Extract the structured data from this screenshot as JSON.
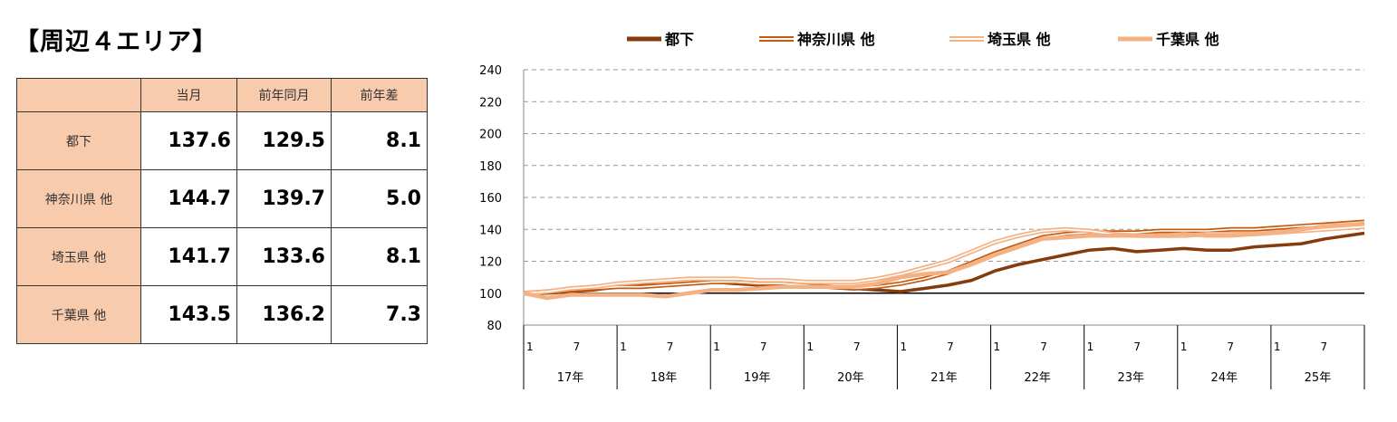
{
  "title": "【周辺４エリア】",
  "table": {
    "headers": [
      "",
      "当月",
      "前年同月",
      "前年差"
    ],
    "rows": [
      {
        "label": "都下",
        "current": "137.6",
        "prev": "129.5",
        "diff": "8.1"
      },
      {
        "label": "神奈川県 他",
        "current": "144.7",
        "prev": "139.7",
        "diff": "5.0"
      },
      {
        "label": "埼玉県 他",
        "current": "141.7",
        "prev": "133.6",
        "diff": "8.1"
      },
      {
        "label": "千葉県 他",
        "current": "143.5",
        "prev": "136.2",
        "diff": "7.3"
      }
    ]
  },
  "chart_data": {
    "type": "line",
    "ylim": [
      80,
      240
    ],
    "yticks": [
      80,
      100,
      120,
      140,
      160,
      180,
      200,
      220,
      240
    ],
    "grid": true,
    "legend": "top",
    "year_labels": [
      "17年",
      "18年",
      "19年",
      "20年",
      "21年",
      "22年",
      "23年",
      "24年",
      "25年"
    ],
    "month_tick_labels": [
      "1",
      "7"
    ],
    "months_total": 108,
    "series_sampling": "quarterly (months 1, 4, 7, 10 of each year, plus final month)",
    "series": [
      {
        "name": "都下",
        "color": "#843c0c",
        "style": "solid",
        "values": [
          100,
          100,
          101,
          102,
          104,
          105,
          105,
          106,
          107,
          106,
          105,
          104,
          104,
          104,
          103,
          102,
          101,
          103,
          105,
          108,
          114,
          118,
          121,
          124,
          127,
          128,
          126,
          127,
          128,
          127,
          127,
          129,
          130,
          131,
          134,
          137.6
        ]
      },
      {
        "name": "神奈川県 他",
        "color": "#c55a11",
        "style": "double",
        "values": [
          100,
          101,
          102,
          103,
          104,
          104,
          105,
          106,
          107,
          107,
          106,
          106,
          105,
          104,
          103,
          104,
          106,
          109,
          113,
          119,
          125,
          130,
          135,
          137,
          138,
          138,
          138,
          139,
          139,
          139,
          140,
          140,
          141,
          142,
          143,
          144.7
        ]
      },
      {
        "name": "埼玉県 他",
        "color": "#f4b183",
        "style": "double",
        "values": [
          100,
          101,
          103,
          104,
          106,
          107,
          108,
          109,
          109,
          109,
          108,
          108,
          107,
          107,
          107,
          109,
          112,
          116,
          120,
          126,
          132,
          136,
          139,
          140,
          139,
          137,
          136,
          136,
          136,
          137,
          137,
          137,
          138,
          139,
          140,
          141.7
        ]
      },
      {
        "name": "千葉県 他",
        "color": "#f4b183",
        "style": "solid-thick",
        "values": [
          100,
          97,
          99,
          99,
          99,
          99,
          98,
          100,
          102,
          102,
          103,
          104,
          104,
          104,
          104,
          106,
          110,
          112,
          113,
          118,
          124,
          129,
          134,
          135,
          136,
          136,
          136,
          136,
          137,
          136,
          136,
          137,
          138,
          140,
          142,
          143.5
        ]
      }
    ]
  }
}
